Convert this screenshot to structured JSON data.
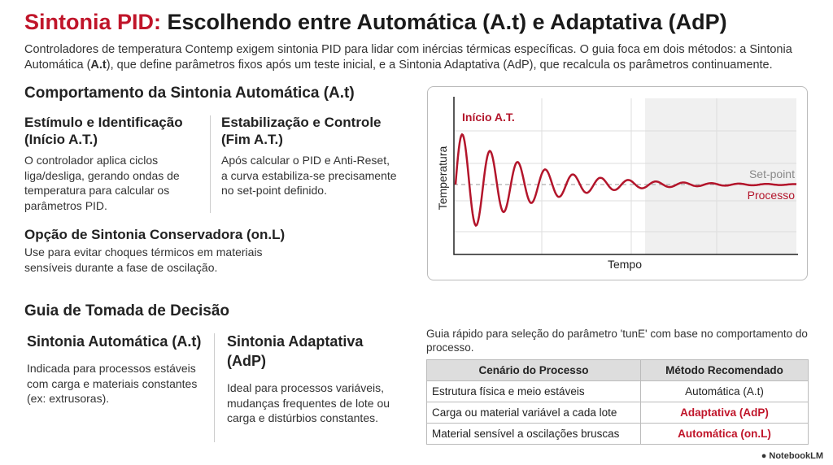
{
  "header": {
    "title_highlight": "Sintonia PID:",
    "title": "Escolhendo entre Automática (A.t) e Adaptativa (AdP)",
    "intro": [
      "Controladores de temperatura Contemp exigem sintonia PID para lidar com inércias térmicas específicas. O guia foca em dois métodos: a Sintonia Automática (",
      "A.t",
      "), que define parâmetros fixos após um teste inicial, e a Sintonia Adaptativa (AdP), que recalcula os parâmetros continuamente."
    ]
  },
  "auto_section": {
    "title": "Comportamento da Sintonia Automática (A.t)",
    "items": [
      {
        "title": "Estímulo e Identificação (Início A.T.)",
        "text": "O controlador aplica ciclos liga/desliga, gerando ondas de temperatura para calcular os parâmetros PID."
      },
      {
        "title": "Estabilização e Controle (Fim A.T.)",
        "text": "Após calcular o PID e Anti-Reset, a curva estabiliza-se precisamente no set-point definido."
      },
      {
        "title": "Opção de Sintonia Conservadora (on.L)",
        "text": "Use para evitar choques térmicos em materiais sensíveis durante a fase de oscilação."
      }
    ]
  },
  "chart": {
    "start_label": "Início A.T.",
    "setpoint_label": "Set-point",
    "process_label": "Processo",
    "y_label": "Temperatura",
    "x_label": "Tempo"
  },
  "decision": {
    "title": "Guia de Tomada de Decisão",
    "columns": [
      {
        "title": "Sintonia Automática (A.t)",
        "text": "Indicada para processos estáveis com carga e materiais constantes (ex: extrusoras)."
      },
      {
        "title": "Sintonia Adaptativa (AdP)",
        "text": "Ideal para processos variáveis, mudanças frequentes de lote ou carga e distúrbios constantes."
      }
    ]
  },
  "table": {
    "caption": "Guia rápido para seleção do parâmetro 'tunE' com base no comportamento do processo.",
    "headers": [
      "Cenário do Processo",
      "Método Recomendado"
    ],
    "rows": [
      [
        "Estrutura física e meio estáveis",
        "Automática (A.t)"
      ],
      [
        "Carga ou material variável a cada lote",
        "Adaptativa (AdP)"
      ],
      [
        "Material sensível a oscilações bruscas",
        "Automática (on.L)"
      ]
    ]
  },
  "footer": {
    "brand": "NotebookLM"
  }
}
